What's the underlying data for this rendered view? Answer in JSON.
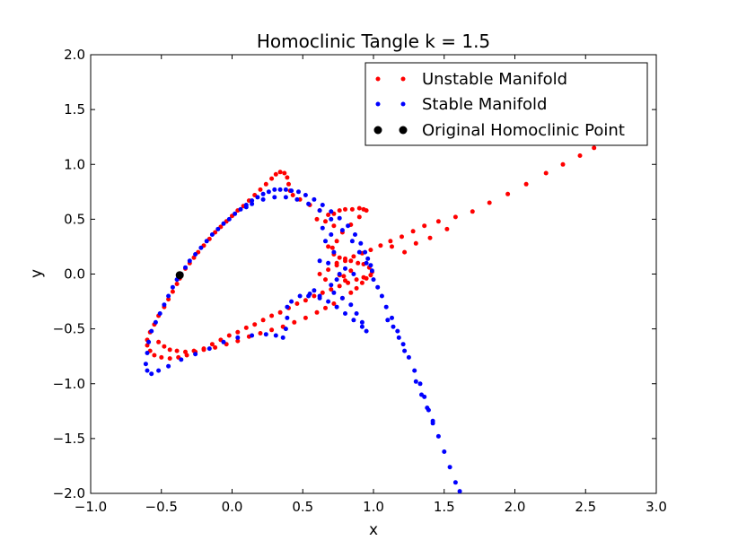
{
  "chart_data": {
    "type": "scatter",
    "title": "Homoclinic Tangle k = 1.5",
    "xlabel": "x",
    "ylabel": "y",
    "xlim": [
      -1.0,
      3.0
    ],
    "ylim": [
      -2.0,
      2.0
    ],
    "xticks": [
      "−1.0",
      "−0.5",
      "0.0",
      "0.5",
      "1.0",
      "1.5",
      "2.0",
      "2.5",
      "3.0"
    ],
    "yticks": [
      "2.0",
      "1.5",
      "1.0",
      "0.5",
      "0.0",
      "−0.5",
      "−1.0",
      "−1.5",
      "−2.0"
    ],
    "grid": false,
    "legend_position": "top-right",
    "series": [
      {
        "name": "Unstable Manifold",
        "color": "#ff0000",
        "marker": "dot",
        "points": [
          [
            -0.36,
            0.0
          ],
          [
            -0.33,
            0.05
          ],
          [
            -0.3,
            0.1
          ],
          [
            -0.27,
            0.15
          ],
          [
            -0.24,
            0.2
          ],
          [
            -0.2,
            0.26
          ],
          [
            -0.16,
            0.32
          ],
          [
            -0.12,
            0.38
          ],
          [
            -0.08,
            0.43
          ],
          [
            -0.04,
            0.48
          ],
          [
            0.0,
            0.53
          ],
          [
            0.04,
            0.58
          ],
          [
            0.08,
            0.62
          ],
          [
            0.12,
            0.67
          ],
          [
            0.16,
            0.72
          ],
          [
            0.2,
            0.77
          ],
          [
            0.24,
            0.82
          ],
          [
            0.28,
            0.87
          ],
          [
            0.31,
            0.91
          ],
          [
            0.34,
            0.93
          ],
          [
            0.37,
            0.92
          ],
          [
            0.39,
            0.88
          ],
          [
            0.4,
            0.82
          ],
          [
            0.41,
            0.76
          ],
          [
            0.43,
            0.72
          ],
          [
            0.48,
            0.68
          ],
          [
            0.55,
            0.63
          ],
          [
            0.62,
            0.58
          ],
          [
            0.68,
            0.54
          ],
          [
            0.72,
            0.55
          ],
          [
            0.76,
            0.58
          ],
          [
            0.8,
            0.59
          ],
          [
            0.85,
            0.59
          ],
          [
            0.9,
            0.6
          ],
          [
            0.93,
            0.59
          ],
          [
            0.95,
            0.58
          ],
          [
            0.9,
            0.52
          ],
          [
            0.84,
            0.45
          ],
          [
            0.78,
            0.38
          ],
          [
            0.74,
            0.3
          ],
          [
            0.71,
            0.24
          ],
          [
            0.72,
            0.18
          ],
          [
            0.76,
            0.15
          ],
          [
            0.8,
            0.14
          ],
          [
            0.84,
            0.12
          ],
          [
            0.89,
            0.1
          ],
          [
            0.93,
            0.09
          ],
          [
            0.97,
            0.06
          ],
          [
            0.99,
            0.02
          ],
          [
            0.98,
            -0.01
          ],
          [
            0.93,
            -0.03
          ],
          [
            0.88,
            -0.05
          ],
          [
            0.82,
            -0.08
          ],
          [
            0.76,
            -0.11
          ],
          [
            0.7,
            -0.14
          ],
          [
            0.64,
            -0.17
          ],
          [
            0.58,
            -0.2
          ],
          [
            0.52,
            -0.24
          ],
          [
            0.46,
            -0.27
          ],
          [
            0.4,
            -0.31
          ],
          [
            0.34,
            -0.35
          ],
          [
            0.28,
            -0.38
          ],
          [
            0.22,
            -0.42
          ],
          [
            0.16,
            -0.46
          ],
          [
            0.1,
            -0.49
          ],
          [
            0.04,
            -0.53
          ],
          [
            -0.02,
            -0.56
          ],
          [
            -0.08,
            -0.6
          ],
          [
            -0.14,
            -0.64
          ],
          [
            -0.2,
            -0.68
          ],
          [
            -0.26,
            -0.71
          ],
          [
            -0.32,
            -0.74
          ],
          [
            -0.38,
            -0.76
          ],
          [
            -0.44,
            -0.77
          ],
          [
            -0.5,
            -0.76
          ],
          [
            -0.55,
            -0.74
          ],
          [
            -0.58,
            -0.7
          ],
          [
            -0.6,
            -0.65
          ],
          [
            -0.6,
            -0.6
          ],
          [
            -0.58,
            -0.53
          ],
          [
            -0.55,
            -0.46
          ],
          [
            -0.52,
            -0.38
          ],
          [
            -0.48,
            -0.3
          ],
          [
            -0.45,
            -0.23
          ],
          [
            -0.42,
            -0.16
          ],
          [
            -0.39,
            -0.09
          ],
          [
            -0.37,
            -0.04
          ],
          [
            -0.52,
            -0.62
          ],
          [
            -0.48,
            -0.66
          ],
          [
            -0.44,
            -0.69
          ],
          [
            -0.39,
            -0.7
          ],
          [
            -0.33,
            -0.71
          ],
          [
            -0.27,
            -0.7
          ],
          [
            -0.2,
            -0.69
          ],
          [
            -0.12,
            -0.67
          ],
          [
            -0.04,
            -0.64
          ],
          [
            0.04,
            -0.61
          ],
          [
            0.12,
            -0.57
          ],
          [
            0.2,
            -0.54
          ],
          [
            0.28,
            -0.51
          ],
          [
            0.36,
            -0.48
          ],
          [
            0.44,
            -0.44
          ],
          [
            0.52,
            -0.4
          ],
          [
            0.6,
            -0.35
          ],
          [
            0.66,
            -0.31
          ],
          [
            0.72,
            -0.27
          ],
          [
            0.78,
            -0.22
          ],
          [
            0.84,
            -0.17
          ],
          [
            0.88,
            -0.13
          ],
          [
            0.92,
            -0.08
          ],
          [
            0.95,
            -0.04
          ],
          [
            0.62,
            0.0
          ],
          [
            0.68,
            0.04
          ],
          [
            0.74,
            0.08
          ],
          [
            0.8,
            0.12
          ],
          [
            0.86,
            0.16
          ],
          [
            0.92,
            0.19
          ],
          [
            0.98,
            0.22
          ],
          [
            1.05,
            0.26
          ],
          [
            1.12,
            0.3
          ],
          [
            1.2,
            0.34
          ],
          [
            1.28,
            0.39
          ],
          [
            1.36,
            0.44
          ],
          [
            1.46,
            0.48
          ],
          [
            1.58,
            0.52
          ],
          [
            1.7,
            0.57
          ],
          [
            1.82,
            0.65
          ],
          [
            1.95,
            0.73
          ],
          [
            2.08,
            0.82
          ],
          [
            2.22,
            0.92
          ],
          [
            2.34,
            1.0
          ],
          [
            2.46,
            1.08
          ],
          [
            2.56,
            1.15
          ],
          [
            2.64,
            1.22
          ],
          [
            2.72,
            1.28
          ],
          [
            1.13,
            0.25
          ],
          [
            1.22,
            0.2
          ],
          [
            1.3,
            0.28
          ],
          [
            1.4,
            0.33
          ],
          [
            1.52,
            0.41
          ],
          [
            0.68,
            0.25
          ],
          [
            0.74,
            0.1
          ],
          [
            0.79,
            -0.02
          ],
          [
            0.66,
            -0.05
          ],
          [
            0.72,
            0.44
          ],
          [
            0.66,
            0.48
          ],
          [
            0.6,
            0.5
          ],
          [
            0.84,
            0.03
          ],
          [
            0.8,
            -0.06
          ],
          [
            0.76,
            -0.01
          ]
        ]
      },
      {
        "name": "Stable Manifold",
        "color": "#0000ff",
        "marker": "dot",
        "points": [
          [
            -0.36,
            0.0
          ],
          [
            -0.39,
            -0.05
          ],
          [
            -0.42,
            -0.12
          ],
          [
            -0.45,
            -0.2
          ],
          [
            -0.48,
            -0.28
          ],
          [
            -0.51,
            -0.36
          ],
          [
            -0.54,
            -0.44
          ],
          [
            -0.57,
            -0.52
          ],
          [
            -0.59,
            -0.62
          ],
          [
            -0.6,
            -0.72
          ],
          [
            -0.61,
            -0.82
          ],
          [
            -0.6,
            -0.88
          ],
          [
            -0.57,
            -0.91
          ],
          [
            -0.52,
            -0.88
          ],
          [
            -0.45,
            -0.84
          ],
          [
            -0.36,
            -0.78
          ],
          [
            -0.26,
            -0.73
          ],
          [
            -0.16,
            -0.68
          ],
          [
            -0.06,
            -0.62
          ],
          [
            0.04,
            -0.58
          ],
          [
            0.14,
            -0.56
          ],
          [
            0.24,
            -0.55
          ],
          [
            0.31,
            -0.56
          ],
          [
            0.36,
            -0.58
          ],
          [
            0.38,
            -0.5
          ],
          [
            0.39,
            -0.4
          ],
          [
            0.39,
            -0.3
          ],
          [
            0.42,
            -0.25
          ],
          [
            0.48,
            -0.2
          ],
          [
            0.55,
            -0.18
          ],
          [
            0.62,
            -0.2
          ],
          [
            0.68,
            -0.25
          ],
          [
            0.74,
            -0.3
          ],
          [
            0.8,
            -0.36
          ],
          [
            0.86,
            -0.42
          ],
          [
            0.92,
            -0.48
          ],
          [
            0.95,
            -0.52
          ],
          [
            0.92,
            -0.44
          ],
          [
            0.88,
            -0.36
          ],
          [
            0.84,
            -0.28
          ],
          [
            0.78,
            -0.22
          ],
          [
            0.72,
            -0.17
          ],
          [
            -0.33,
            0.06
          ],
          [
            -0.3,
            0.12
          ],
          [
            -0.26,
            0.18
          ],
          [
            -0.22,
            0.24
          ],
          [
            -0.18,
            0.3
          ],
          [
            -0.14,
            0.36
          ],
          [
            -0.1,
            0.41
          ],
          [
            -0.06,
            0.46
          ],
          [
            -0.02,
            0.5
          ],
          [
            0.02,
            0.55
          ],
          [
            0.06,
            0.59
          ],
          [
            0.1,
            0.63
          ],
          [
            0.14,
            0.67
          ],
          [
            0.18,
            0.7
          ],
          [
            0.22,
            0.73
          ],
          [
            0.26,
            0.75
          ],
          [
            0.3,
            0.77
          ],
          [
            0.34,
            0.77
          ],
          [
            0.38,
            0.77
          ],
          [
            0.42,
            0.76
          ],
          [
            0.47,
            0.75
          ],
          [
            0.52,
            0.72
          ],
          [
            0.58,
            0.68
          ],
          [
            0.64,
            0.63
          ],
          [
            0.7,
            0.57
          ],
          [
            0.76,
            0.51
          ],
          [
            0.82,
            0.44
          ],
          [
            0.87,
            0.36
          ],
          [
            0.91,
            0.28
          ],
          [
            0.94,
            0.2
          ],
          [
            0.96,
            0.14
          ],
          [
            0.98,
            0.08
          ],
          [
            0.99,
            0.03
          ],
          [
            0.95,
            0.1
          ],
          [
            0.9,
            0.2
          ],
          [
            0.85,
            0.3
          ],
          [
            0.78,
            0.4
          ],
          [
            0.7,
            0.5
          ],
          [
            0.62,
            0.58
          ],
          [
            0.54,
            0.64
          ],
          [
            0.46,
            0.68
          ],
          [
            0.38,
            0.7
          ],
          [
            0.3,
            0.7
          ],
          [
            0.22,
            0.68
          ],
          [
            0.14,
            0.64
          ],
          [
            0.1,
            0.61
          ],
          [
            1.0,
            -0.05
          ],
          [
            1.03,
            -0.12
          ],
          [
            1.06,
            -0.2
          ],
          [
            1.09,
            -0.3
          ],
          [
            1.13,
            -0.4
          ],
          [
            1.17,
            -0.52
          ],
          [
            1.21,
            -0.64
          ],
          [
            1.25,
            -0.76
          ],
          [
            1.29,
            -0.88
          ],
          [
            1.33,
            -1.0
          ],
          [
            1.36,
            -1.12
          ],
          [
            1.39,
            -1.24
          ],
          [
            1.42,
            -1.36
          ],
          [
            1.46,
            -1.48
          ],
          [
            1.5,
            -1.62
          ],
          [
            1.54,
            -1.76
          ],
          [
            1.58,
            -1.9
          ],
          [
            1.61,
            -1.98
          ],
          [
            1.3,
            -0.98
          ],
          [
            1.34,
            -1.1
          ],
          [
            1.38,
            -1.22
          ],
          [
            1.42,
            -1.34
          ],
          [
            1.22,
            -0.7
          ],
          [
            1.18,
            -0.58
          ],
          [
            1.1,
            -0.42
          ],
          [
            1.14,
            -0.48
          ],
          [
            0.74,
            -0.05
          ],
          [
            0.7,
            -0.1
          ],
          [
            0.76,
            0.0
          ],
          [
            0.68,
            0.1
          ],
          [
            0.72,
            0.2
          ],
          [
            0.62,
            0.12
          ],
          [
            0.8,
            0.05
          ],
          [
            0.86,
            0.0
          ],
          [
            0.58,
            -0.15
          ],
          [
            0.54,
            -0.2
          ],
          [
            0.62,
            -0.22
          ],
          [
            0.66,
            0.3
          ],
          [
            0.7,
            0.36
          ],
          [
            0.64,
            0.42
          ]
        ]
      },
      {
        "name": "Original Homoclinic Point",
        "color": "#000000",
        "marker": "large-dot",
        "points": [
          [
            -0.37,
            -0.01
          ]
        ]
      }
    ]
  }
}
